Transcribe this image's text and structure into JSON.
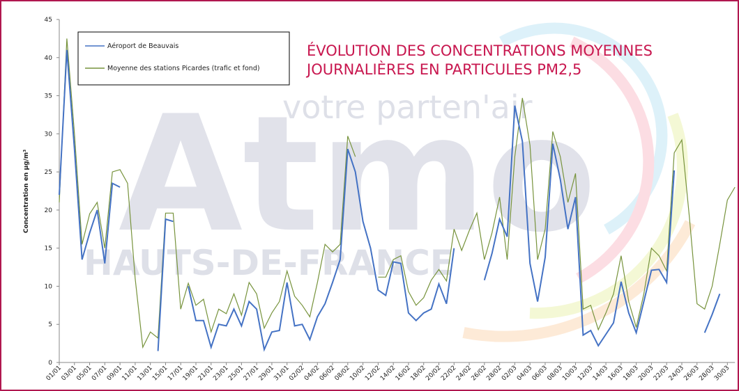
{
  "chart_data": {
    "type": "line",
    "title": [
      "ÉVOLUTION DES CONCENTRATIONS MOYENNES",
      "JOURNALIÈRES EN PARTICULES PM2,5"
    ],
    "y_label": "Concentration en µg/m³",
    "annotations": [
      "Atmo",
      "HAUTS-DE-FRANCE",
      "votre parten'air"
    ],
    "categories": [
      "01/01",
      null,
      "03/01",
      null,
      "05/01",
      null,
      "07/01",
      null,
      "09/01",
      null,
      "11/01",
      null,
      "13/01",
      null,
      "15/01",
      null,
      "17/01",
      null,
      "19/01",
      null,
      "21/01",
      null,
      "23/01",
      null,
      "25/01",
      null,
      "27/01",
      null,
      "29/01",
      null,
      "31/01",
      null,
      "02/02",
      null,
      "04/02",
      null,
      "06/02",
      null,
      "08/02",
      null,
      "10/02",
      null,
      "12/02",
      null,
      "14/02",
      null,
      "16/02",
      null,
      "18/02",
      null,
      "20/02",
      null,
      "22/02",
      null,
      "24/02",
      null,
      "26/02",
      null,
      "28/02",
      null,
      "02/03",
      null,
      "04/03",
      null,
      "06/03",
      null,
      "08/03",
      null,
      "10/03",
      null,
      "12/03",
      null,
      "14/03",
      null,
      "16/03",
      null,
      "18/03",
      null,
      "20/03",
      null,
      "22/03",
      null,
      "24/03",
      null,
      "26/03",
      null,
      "28/03",
      null,
      "30/03",
      null
    ],
    "series": [
      {
        "name": "Aéroport de Beauvais",
        "color": "#4472c4",
        "values": [
          22,
          41,
          28,
          13.5,
          17,
          20,
          13,
          23.5,
          23,
          null,
          null,
          null,
          null,
          1.5,
          18.8,
          18.5,
          null,
          10,
          5.5,
          5.5,
          2,
          5,
          4.8,
          7,
          4.8,
          8,
          7,
          1.7,
          4,
          4.2,
          10.5,
          4.8,
          5,
          3,
          6,
          7.7,
          10.5,
          13.5,
          28,
          25,
          18.5,
          15,
          9.5,
          8.8,
          13.2,
          13,
          6.5,
          5.5,
          6.5,
          7,
          10.3,
          7.7,
          15,
          null,
          null,
          null,
          10.8,
          14.3,
          18.8,
          16.5,
          33.7,
          29,
          13,
          8,
          13.8,
          28.7,
          24,
          17.5,
          21.7,
          3.6,
          4.2,
          2.2,
          3.7,
          5.2,
          10.6,
          6.5,
          3.9,
          8,
          12.1,
          12.2,
          10.5,
          25.2,
          null,
          null,
          null,
          3.9,
          6.3,
          9,
          null,
          null
        ]
      },
      {
        "name": "Moyenne des stations Picardes (trafic et fond)",
        "color": "#77933c",
        "values": [
          21,
          42.5,
          30,
          15.5,
          19.5,
          21,
          15,
          25,
          25.3,
          23.5,
          11,
          2,
          4,
          3.2,
          19.6,
          19.6,
          7,
          10.4,
          7.5,
          8.3,
          4,
          7,
          6.4,
          9,
          6.2,
          10.5,
          9,
          4.5,
          6.5,
          8,
          12,
          8.7,
          7.5,
          6,
          10.5,
          15.5,
          14.5,
          15.5,
          29.7,
          27,
          null,
          null,
          11.2,
          11.2,
          13.5,
          14,
          9.3,
          7.5,
          8.5,
          10.8,
          12.2,
          10.7,
          17.5,
          14.7,
          17.3,
          19.6,
          13.5,
          17,
          21.7,
          13.5,
          27,
          34.7,
          28.5,
          13.5,
          17.5,
          30.3,
          27,
          21,
          24.8,
          7,
          7.5,
          4.3,
          6.5,
          9,
          14,
          8,
          4.6,
          9,
          15,
          14,
          12,
          27.5,
          29.2,
          19,
          7.7,
          7,
          10,
          15.5,
          21.3,
          23
        ]
      }
    ],
    "ylim": [
      0,
      45
    ],
    "yticks": [
      0,
      5,
      10,
      15,
      20,
      25,
      30,
      35,
      40,
      45
    ],
    "grid": false
  }
}
